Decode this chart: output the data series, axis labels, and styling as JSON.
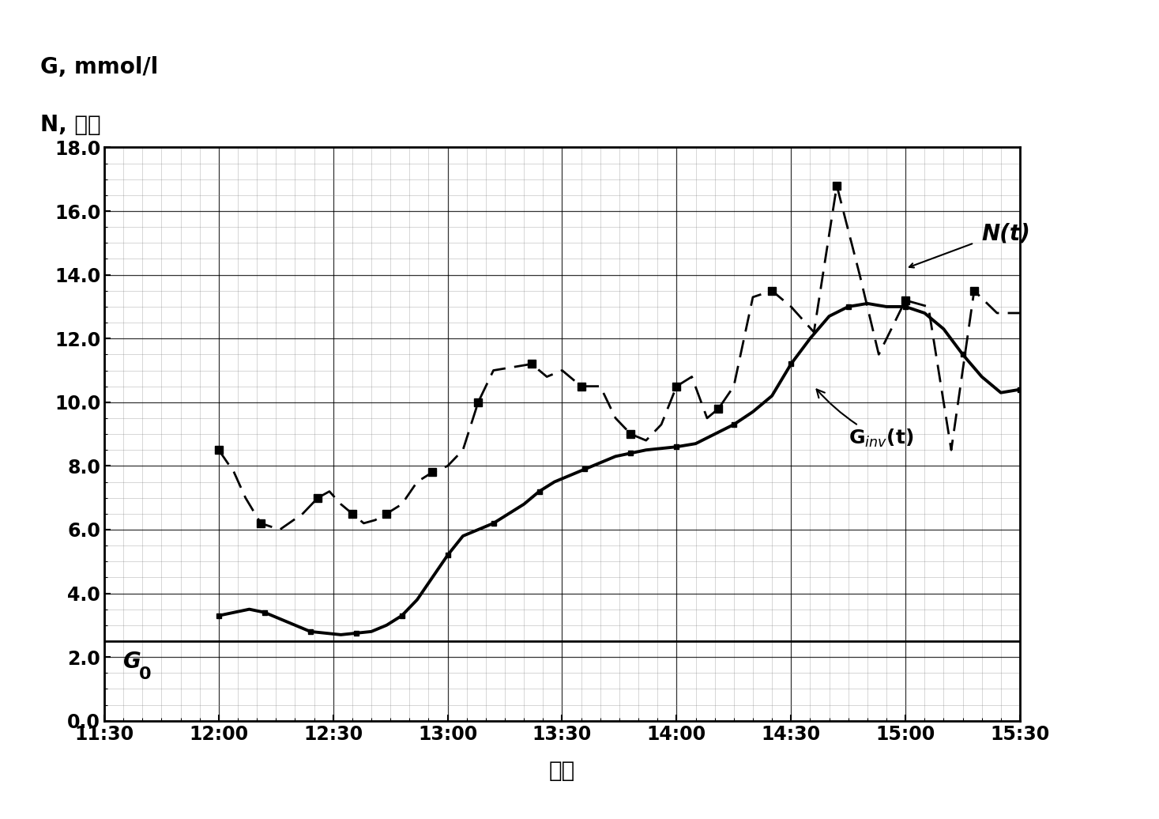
{
  "title_left1": "G, mmol/l",
  "title_left2": "N, 单位",
  "xlabel": "时间",
  "xlim_start_min": 690,
  "xlim_end_min": 930,
  "ylim": [
    0.0,
    18.0
  ],
  "yticks": [
    0.0,
    2.0,
    4.0,
    6.0,
    8.0,
    10.0,
    12.0,
    14.0,
    16.0,
    18.0
  ],
  "xtick_labels": [
    "11:30",
    "12:00",
    "12:30",
    "13:00",
    "13:30",
    "14:00",
    "14:30",
    "15:00",
    "15:30"
  ],
  "xtick_minutes": [
    690,
    720,
    750,
    780,
    810,
    840,
    870,
    900,
    930
  ],
  "g0_label": "G",
  "g0_sub": "0",
  "ginv_label": "G",
  "ginv_sub": "inv",
  "ginv_rest": "(t)",
  "nt_label": "N(t)",
  "g0_y_val": 2.5,
  "ginv_x": [
    720,
    724,
    728,
    732,
    736,
    740,
    744,
    748,
    752,
    756,
    760,
    764,
    768,
    772,
    776,
    780,
    784,
    788,
    792,
    796,
    800,
    804,
    808,
    812,
    816,
    820,
    824,
    828,
    832,
    836,
    840,
    845,
    850,
    855,
    860,
    865,
    870,
    875,
    880,
    885,
    890,
    895,
    900,
    905,
    910,
    915,
    920,
    925,
    930
  ],
  "ginv_y": [
    3.3,
    3.4,
    3.5,
    3.4,
    3.2,
    3.0,
    2.8,
    2.75,
    2.7,
    2.75,
    2.8,
    3.0,
    3.3,
    3.8,
    4.5,
    5.2,
    5.8,
    6.0,
    6.2,
    6.5,
    6.8,
    7.2,
    7.5,
    7.7,
    7.9,
    8.1,
    8.3,
    8.4,
    8.5,
    8.55,
    8.6,
    8.7,
    9.0,
    9.3,
    9.7,
    10.2,
    11.2,
    12.0,
    12.7,
    13.0,
    13.1,
    13.0,
    13.0,
    12.8,
    12.3,
    11.5,
    10.8,
    10.3,
    10.4
  ],
  "nt_x": [
    720,
    724,
    727,
    731,
    736,
    742,
    746,
    749,
    752,
    755,
    758,
    761,
    764,
    768,
    772,
    776,
    780,
    784,
    788,
    792,
    797,
    802,
    806,
    810,
    815,
    820,
    824,
    828,
    832,
    836,
    840,
    844,
    848,
    851,
    855,
    860,
    865,
    870,
    876,
    882,
    888,
    893,
    900,
    906,
    912,
    918,
    924,
    930
  ],
  "nt_y": [
    8.5,
    7.8,
    7.0,
    6.2,
    6.0,
    6.5,
    7.0,
    7.2,
    6.8,
    6.5,
    6.2,
    6.3,
    6.5,
    6.8,
    7.5,
    7.8,
    8.0,
    8.5,
    10.0,
    11.0,
    11.1,
    11.2,
    10.8,
    11.0,
    10.5,
    10.5,
    9.5,
    9.0,
    8.8,
    9.3,
    10.5,
    10.8,
    9.5,
    9.8,
    10.5,
    13.3,
    13.5,
    13.0,
    12.2,
    16.8,
    14.0,
    11.5,
    13.2,
    13.0,
    8.5,
    13.5,
    12.8,
    12.8
  ],
  "background_color": "#ffffff",
  "line_color": "#000000"
}
